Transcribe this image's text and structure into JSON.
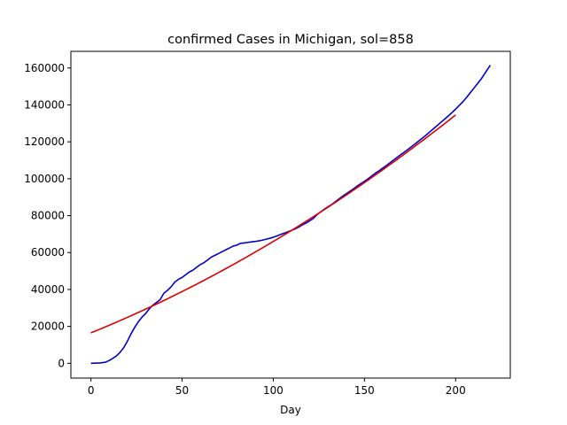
{
  "chart_data": {
    "type": "line",
    "title": "confirmed Cases in Michigan, sol=858",
    "xlabel": "Day",
    "ylabel": "",
    "xlim": [
      -11,
      230
    ],
    "ylim": [
      -8000,
      169000
    ],
    "xticks": [
      0,
      50,
      100,
      150,
      200
    ],
    "xtick_labels": [
      "0",
      "50",
      "100",
      "150",
      "200"
    ],
    "yticks": [
      0,
      20000,
      40000,
      60000,
      80000,
      100000,
      120000,
      140000,
      160000
    ],
    "ytick_labels": [
      "0",
      "20000",
      "40000",
      "60000",
      "80000",
      "100000",
      "120000",
      "140000",
      "160000"
    ],
    "grid": false,
    "series": [
      {
        "color": "#0000cc",
        "x": [
          0,
          5,
          8,
          10,
          12,
          14,
          16,
          18,
          20,
          22,
          24,
          26,
          28,
          30,
          32,
          34,
          36,
          38,
          40,
          42,
          44,
          46,
          48,
          50,
          52,
          54,
          56,
          58,
          60,
          62,
          64,
          66,
          68,
          70,
          72,
          74,
          76,
          78,
          80,
          82,
          84,
          86,
          88,
          90,
          92,
          94,
          96,
          98,
          100,
          102,
          104,
          106,
          108,
          110,
          112,
          114,
          116,
          118,
          120,
          122,
          124,
          126,
          128,
          130,
          132,
          134,
          136,
          138,
          140,
          142,
          144,
          146,
          148,
          150,
          152,
          154,
          156,
          158,
          160,
          162,
          164,
          166,
          168,
          170,
          172,
          174,
          176,
          178,
          180,
          182,
          184,
          186,
          188,
          190,
          192,
          194,
          196,
          198,
          200,
          202,
          204,
          206,
          208,
          210,
          212,
          214,
          216,
          218,
          219
        ],
        "y": [
          0,
          200,
          600,
          1500,
          2700,
          4000,
          6000,
          8500,
          12000,
          16000,
          19500,
          22500,
          25000,
          27000,
          29500,
          31500,
          33000,
          34500,
          38000,
          39500,
          41500,
          44000,
          45500,
          46500,
          48000,
          49500,
          50500,
          52000,
          53500,
          54500,
          56000,
          57500,
          58500,
          59500,
          60500,
          61500,
          62500,
          63500,
          64000,
          65000,
          65200,
          65500,
          65800,
          66000,
          66300,
          66700,
          67200,
          67700,
          68300,
          69000,
          69800,
          70500,
          71200,
          72000,
          72800,
          73800,
          75000,
          76000,
          77200,
          78500,
          80500,
          82000,
          83500,
          84800,
          86000,
          87500,
          89000,
          90500,
          91800,
          93200,
          94500,
          96000,
          97300,
          98600,
          100000,
          101500,
          103000,
          104300,
          105700,
          107100,
          108600,
          110100,
          111600,
          113100,
          114500,
          116000,
          117500,
          119000,
          120600,
          122200,
          123800,
          125500,
          127200,
          128900,
          130600,
          132300,
          134000,
          135800,
          137700,
          139700,
          141700,
          144000,
          146500,
          149000,
          151500,
          154000,
          157000,
          160000,
          161500
        ]
      },
      {
        "color": "#dd0000",
        "x": [
          0,
          200
        ],
        "y": [
          16500,
          134500
        ],
        "fit": {
          "x0": 0,
          "y0": 16500,
          "x1": 200,
          "y1": 134500,
          "curve_y_at_100": 66000
        }
      }
    ]
  }
}
